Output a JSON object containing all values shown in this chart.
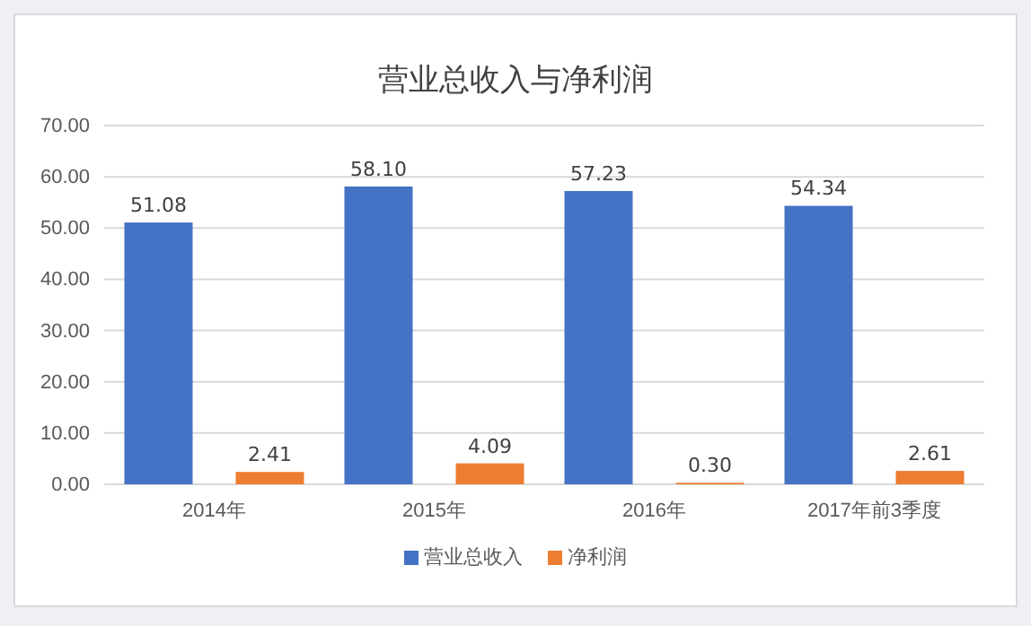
{
  "chart_data": {
    "type": "bar",
    "title": "营业总收入与净利润",
    "categories": [
      "2014年",
      "2015年",
      "2016年",
      "2017年前3季度"
    ],
    "series": [
      {
        "name": "营业总收入",
        "color": "#4472c4",
        "values": [
          51.08,
          58.1,
          57.23,
          54.34
        ],
        "value_labels": [
          "51.08",
          "58.10",
          "57.23",
          "54.34"
        ]
      },
      {
        "name": "净利润",
        "color": "#ed7d31",
        "values": [
          2.41,
          4.09,
          0.3,
          2.61
        ],
        "value_labels": [
          "2.41",
          "4.09",
          "0.30",
          "2.61"
        ]
      }
    ],
    "ylim": [
      0,
      70
    ],
    "yticks": [
      {
        "value": 0,
        "label": "0.00"
      },
      {
        "value": 10,
        "label": "10.00"
      },
      {
        "value": 20,
        "label": "20.00"
      },
      {
        "value": 30,
        "label": "30.00"
      },
      {
        "value": 40,
        "label": "40.00"
      },
      {
        "value": 50,
        "label": "50.00"
      },
      {
        "value": 60,
        "label": "60.00"
      },
      {
        "value": 70,
        "label": "70.00"
      }
    ],
    "grid": "y",
    "legend": "bottom"
  }
}
